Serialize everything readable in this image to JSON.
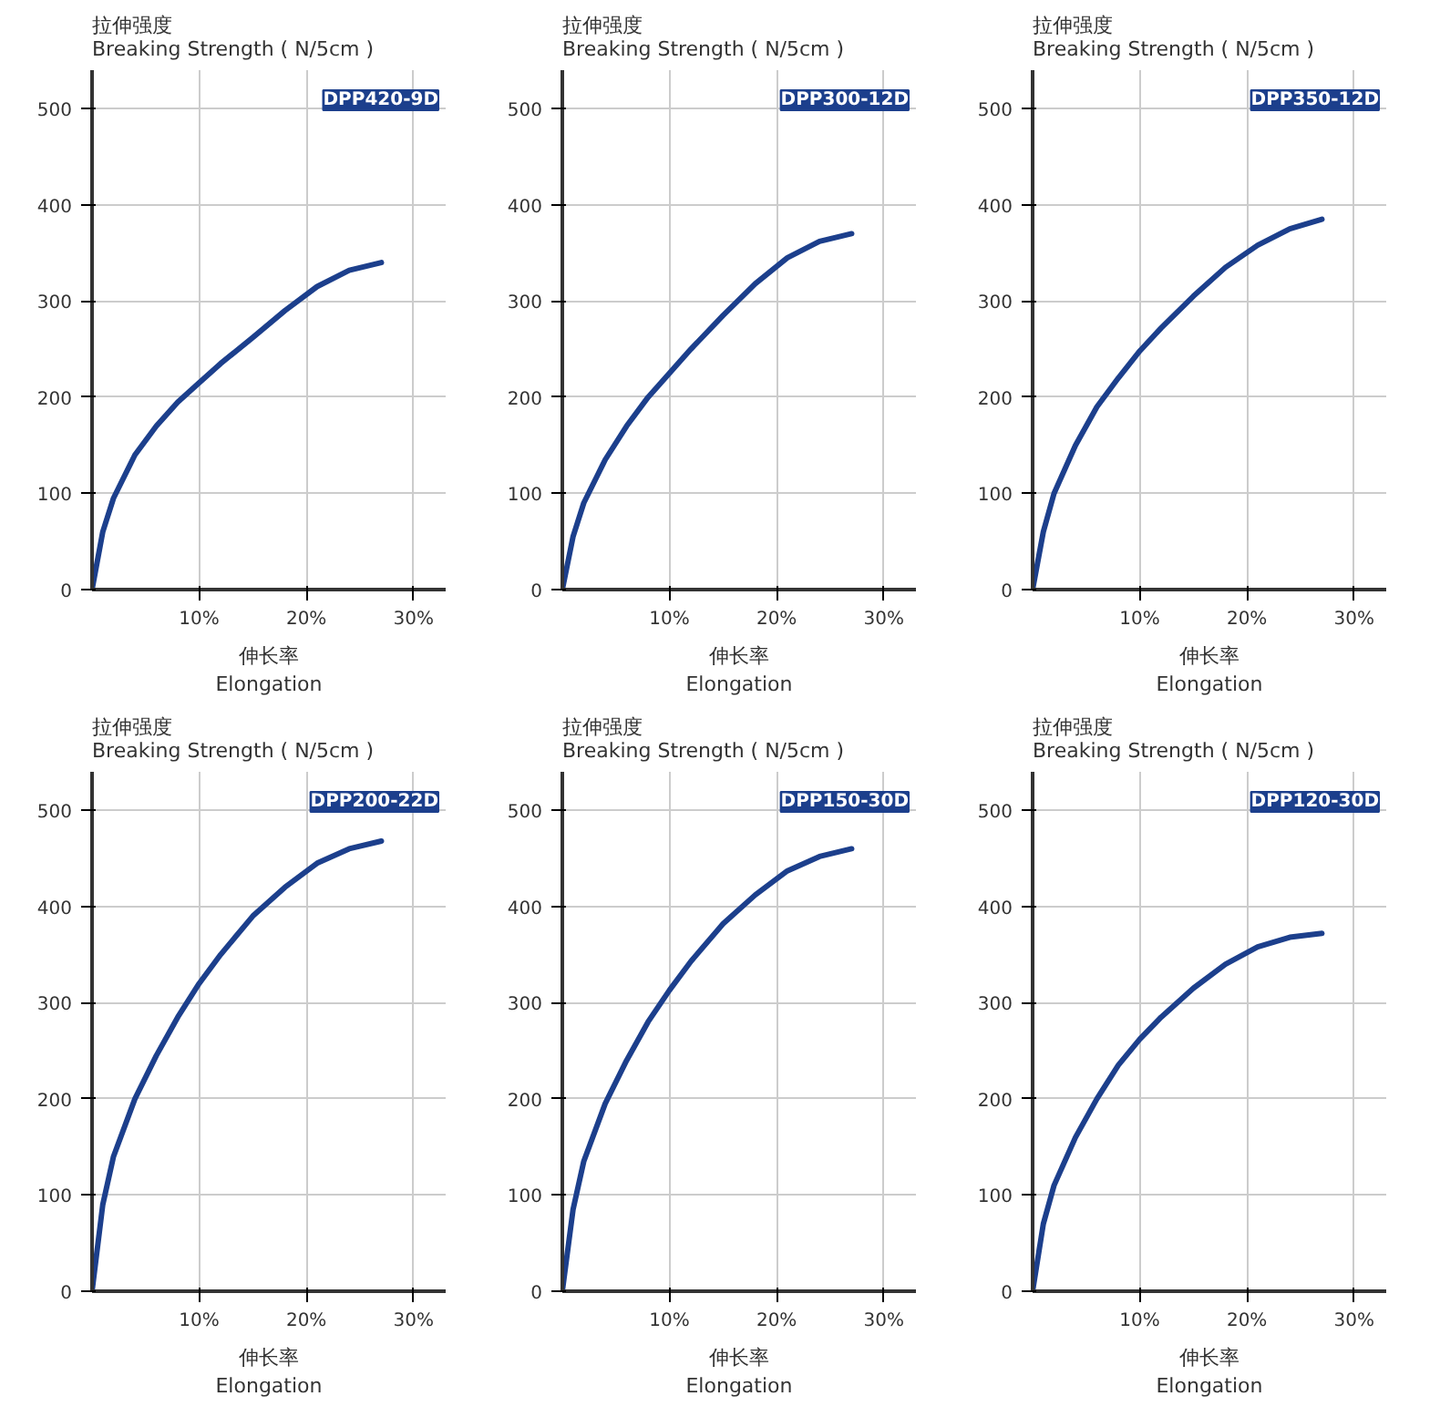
{
  "chart_data": [
    {
      "type": "line",
      "ylabel": "拉伸强度\nBreaking Strength ( N/5cm )",
      "xlabel": "伸长率\nElongation",
      "x": [
        0,
        1,
        2,
        4,
        6,
        8,
        10,
        12,
        15,
        18,
        21,
        24,
        27
      ],
      "xlim": [
        0,
        33
      ],
      "xticks": [
        {
          "value": 10,
          "label": "10%"
        },
        {
          "value": 20,
          "label": "20%"
        },
        {
          "value": 30,
          "label": "30%"
        }
      ],
      "ylim": [
        0,
        540
      ],
      "yticks": [
        0,
        100,
        200,
        300,
        400,
        500
      ],
      "grid": true,
      "series": [
        {
          "name": "DPP420-9D",
          "color": "#1c3f8c",
          "values": [
            0,
            60,
            95,
            140,
            170,
            195,
            215,
            235,
            262,
            290,
            315,
            332,
            340
          ]
        }
      ]
    },
    {
      "type": "line",
      "ylabel": "拉伸强度\nBreaking Strength ( N/5cm )",
      "xlabel": "伸长率\nElongation",
      "x": [
        0,
        1,
        2,
        4,
        6,
        8,
        10,
        12,
        15,
        18,
        21,
        24,
        27
      ],
      "xlim": [
        0,
        33
      ],
      "xticks": [
        {
          "value": 10,
          "label": "10%"
        },
        {
          "value": 20,
          "label": "20%"
        },
        {
          "value": 30,
          "label": "30%"
        }
      ],
      "ylim": [
        0,
        540
      ],
      "yticks": [
        0,
        100,
        200,
        300,
        400,
        500
      ],
      "grid": true,
      "series": [
        {
          "name": "DPP300-12D",
          "color": "#1c3f8c",
          "values": [
            0,
            55,
            90,
            135,
            170,
            200,
            225,
            250,
            285,
            318,
            345,
            362,
            370
          ]
        }
      ]
    },
    {
      "type": "line",
      "ylabel": "拉伸强度\nBreaking Strength ( N/5cm )",
      "xlabel": "伸长率\nElongation",
      "x": [
        0,
        1,
        2,
        4,
        6,
        8,
        10,
        12,
        15,
        18,
        21,
        24,
        27
      ],
      "xlim": [
        0,
        33
      ],
      "xticks": [
        {
          "value": 10,
          "label": "10%"
        },
        {
          "value": 20,
          "label": "20%"
        },
        {
          "value": 30,
          "label": "30%"
        }
      ],
      "ylim": [
        0,
        540
      ],
      "yticks": [
        0,
        100,
        200,
        300,
        400,
        500
      ],
      "grid": true,
      "series": [
        {
          "name": "DPP350-12D",
          "color": "#1c3f8c",
          "values": [
            0,
            60,
            100,
            150,
            190,
            220,
            248,
            272,
            305,
            335,
            358,
            375,
            385
          ]
        }
      ]
    },
    {
      "type": "line",
      "ylabel": "拉伸强度\nBreaking Strength ( N/5cm )",
      "xlabel": "伸长率\nElongation",
      "x": [
        0,
        1,
        2,
        4,
        6,
        8,
        10,
        12,
        15,
        18,
        21,
        24,
        27
      ],
      "xlim": [
        0,
        33
      ],
      "xticks": [
        {
          "value": 10,
          "label": "10%"
        },
        {
          "value": 20,
          "label": "20%"
        },
        {
          "value": 30,
          "label": "30%"
        }
      ],
      "ylim": [
        0,
        540
      ],
      "yticks": [
        0,
        100,
        200,
        300,
        400,
        500
      ],
      "grid": true,
      "series": [
        {
          "name": "DPP200-22D",
          "color": "#1c3f8c",
          "values": [
            0,
            90,
            140,
            200,
            245,
            285,
            320,
            350,
            390,
            420,
            445,
            460,
            468
          ]
        }
      ]
    },
    {
      "type": "line",
      "ylabel": "拉伸强度\nBreaking Strength ( N/5cm )",
      "xlabel": "伸长率\nElongation",
      "x": [
        0,
        1,
        2,
        4,
        6,
        8,
        10,
        12,
        15,
        18,
        21,
        24,
        27
      ],
      "xlim": [
        0,
        33
      ],
      "xticks": [
        {
          "value": 10,
          "label": "10%"
        },
        {
          "value": 20,
          "label": "20%"
        },
        {
          "value": 30,
          "label": "30%"
        }
      ],
      "ylim": [
        0,
        540
      ],
      "yticks": [
        0,
        100,
        200,
        300,
        400,
        500
      ],
      "grid": true,
      "series": [
        {
          "name": "DPP150-30D",
          "color": "#1c3f8c",
          "values": [
            0,
            85,
            135,
            195,
            240,
            280,
            313,
            343,
            382,
            412,
            437,
            452,
            460
          ]
        }
      ]
    },
    {
      "type": "line",
      "ylabel": "拉伸强度\nBreaking Strength ( N/5cm )",
      "xlabel": "伸长率\nElongation",
      "x": [
        0,
        1,
        2,
        4,
        6,
        8,
        10,
        12,
        15,
        18,
        21,
        24,
        27
      ],
      "xlim": [
        0,
        33
      ],
      "xticks": [
        {
          "value": 10,
          "label": "10%"
        },
        {
          "value": 20,
          "label": "20%"
        },
        {
          "value": 30,
          "label": "30%"
        }
      ],
      "ylim": [
        0,
        540
      ],
      "yticks": [
        0,
        100,
        200,
        300,
        400,
        500
      ],
      "grid": true,
      "series": [
        {
          "name": "DPP120-30D",
          "color": "#1c3f8c",
          "values": [
            0,
            70,
            110,
            160,
            200,
            235,
            262,
            285,
            315,
            340,
            358,
            368,
            372
          ]
        }
      ]
    }
  ]
}
